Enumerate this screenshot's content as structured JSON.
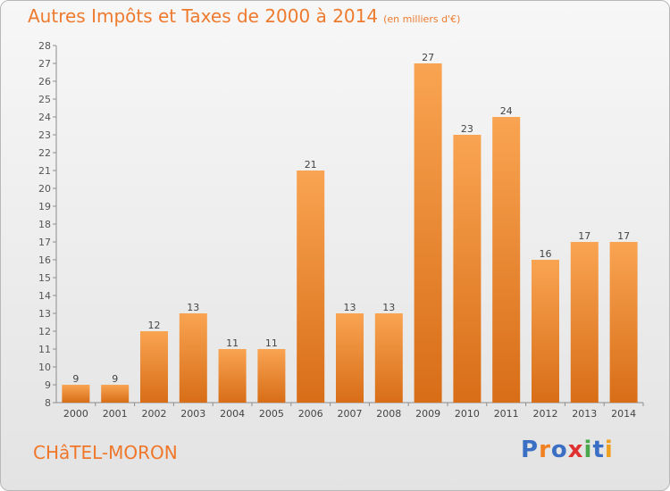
{
  "header": {
    "title": "Autres Impôts et Taxes de 2000 à 2014",
    "unit": "(en milliers d'€)"
  },
  "footer": {
    "town": "CHâTEL-MORON",
    "brand": "Proxiti"
  },
  "colors": {
    "accent": "#ee7a2e",
    "bar_top": "#f9a452",
    "bar_bottom": "#d86d17",
    "brand_letters": [
      "#3a6fc4",
      "#f08020",
      "#3a6fc4",
      "#e03030",
      "#49a84c",
      "#3a6fc4",
      "#f0a020"
    ]
  },
  "chart_data": {
    "type": "bar",
    "title": "Autres Impôts et Taxes de 2000 à 2014",
    "subtitle": "(en milliers d'€)",
    "categories": [
      "2000",
      "2001",
      "2002",
      "2003",
      "2004",
      "2005",
      "2006",
      "2007",
      "2008",
      "2009",
      "2010",
      "2011",
      "2012",
      "2013",
      "2014"
    ],
    "values": [
      9,
      9,
      12,
      13,
      11,
      11,
      21,
      13,
      13,
      27,
      23,
      24,
      16,
      17,
      17
    ],
    "ylim": [
      8,
      28
    ],
    "yticks": [
      8,
      9,
      10,
      11,
      12,
      13,
      14,
      15,
      16,
      17,
      18,
      19,
      20,
      21,
      22,
      23,
      24,
      25,
      26,
      27,
      28
    ],
    "grid": false,
    "legend": "none"
  }
}
